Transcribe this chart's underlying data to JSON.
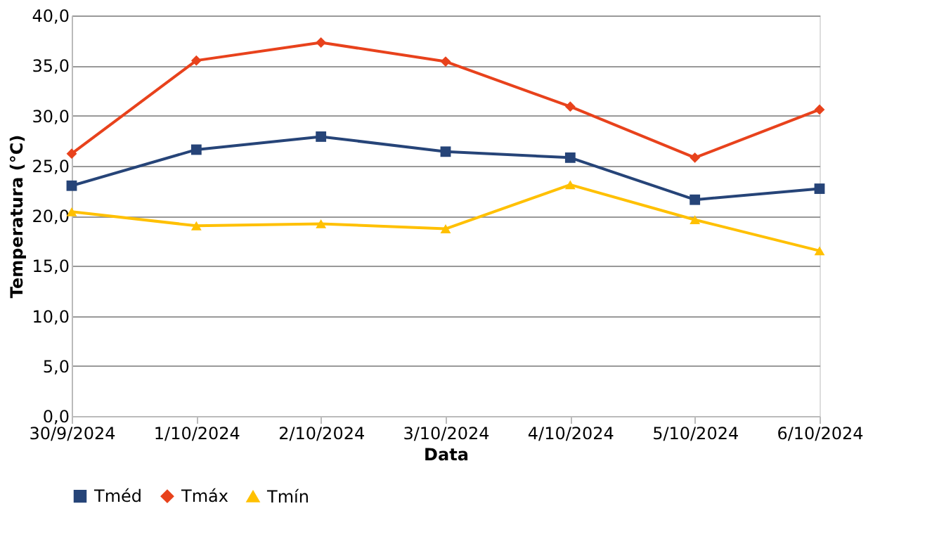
{
  "chart_data": {
    "type": "line",
    "xlabel": "Data",
    "ylabel": "Temperatura (°C)",
    "categories": [
      "30/9/2024",
      "1/10/2024",
      "2/10/2024",
      "3/10/2024",
      "4/10/2024",
      "5/10/2024",
      "6/10/2024"
    ],
    "series": [
      {
        "name": "Tméd",
        "color": "#264478",
        "marker": "square",
        "values": [
          23.0,
          26.6,
          27.9,
          26.4,
          25.8,
          21.6,
          22.7
        ]
      },
      {
        "name": "Tmáx",
        "color": "#e8421c",
        "marker": "diamond",
        "values": [
          26.2,
          35.5,
          37.3,
          35.4,
          30.9,
          25.8,
          30.6
        ]
      },
      {
        "name": "Tmín",
        "color": "#ffc000",
        "marker": "triangle",
        "values": [
          20.4,
          19.0,
          19.2,
          18.7,
          23.1,
          19.6,
          16.5
        ]
      }
    ],
    "ylim": [
      0,
      40
    ],
    "yticks": [
      {
        "value": 0,
        "label": "0,0"
      },
      {
        "value": 5,
        "label": "5,0"
      },
      {
        "value": 10,
        "label": "10,0"
      },
      {
        "value": 15,
        "label": "15,0"
      },
      {
        "value": 20,
        "label": "20,0"
      },
      {
        "value": 25,
        "label": "25,0"
      },
      {
        "value": 30,
        "label": "30,0"
      },
      {
        "value": 35,
        "label": "35,0"
      },
      {
        "value": 40,
        "label": "40,0"
      }
    ],
    "grid": "y",
    "legend": "bottom",
    "line_style": "solid"
  }
}
